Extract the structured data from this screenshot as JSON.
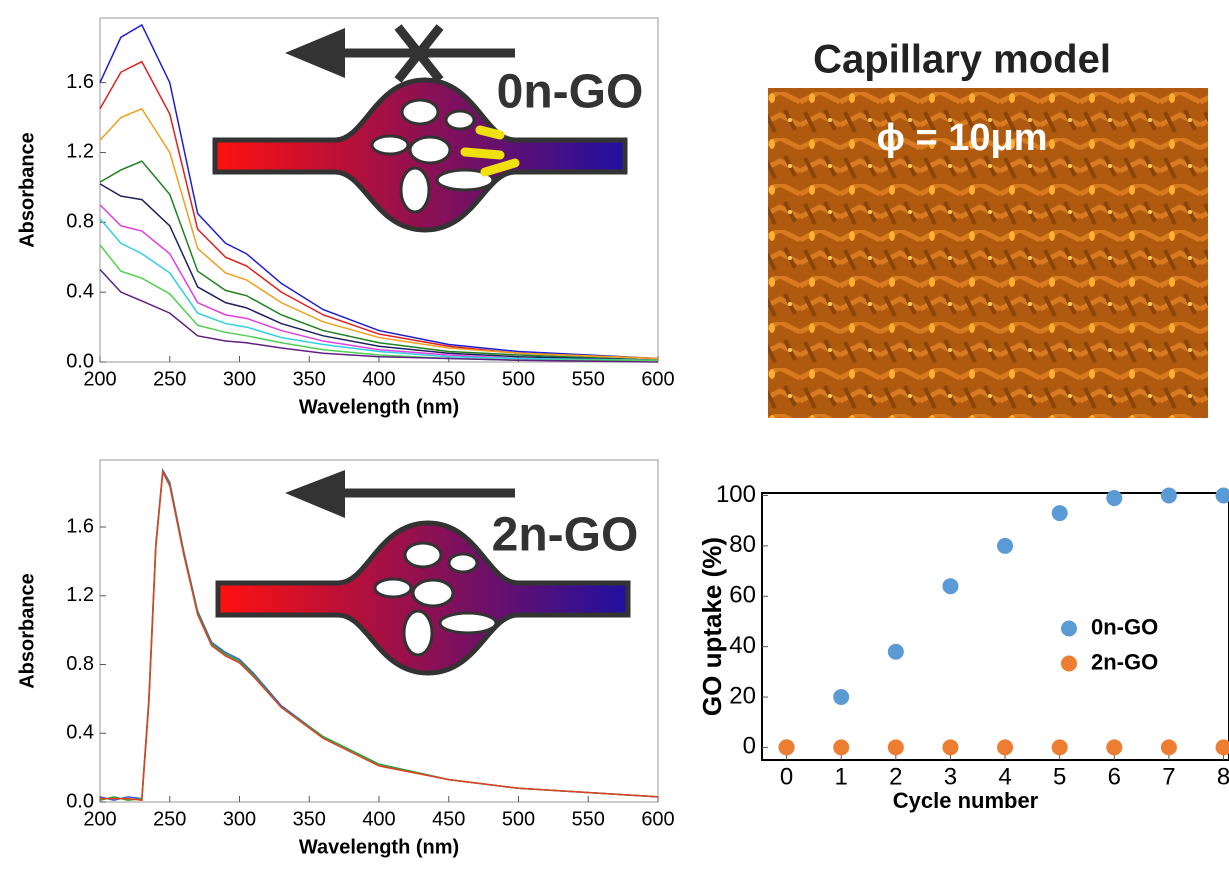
{
  "chart_data": [
    {
      "type": "line",
      "xlabel": "Wavelength (nm)",
      "ylabel": "Absorbance",
      "annotation": "0n-GO",
      "x": [
        200,
        215,
        230,
        250,
        270,
        290,
        305,
        330,
        360,
        400,
        450,
        500,
        600
      ],
      "series": [
        {
          "color": "#1f1fd0",
          "values": [
            1.6,
            1.86,
            1.93,
            1.6,
            0.85,
            0.68,
            0.62,
            0.45,
            0.3,
            0.18,
            0.1,
            0.06,
            0.02
          ]
        },
        {
          "color": "#e02020",
          "values": [
            1.45,
            1.66,
            1.72,
            1.42,
            0.76,
            0.6,
            0.55,
            0.4,
            0.27,
            0.16,
            0.09,
            0.05,
            0.02
          ]
        },
        {
          "color": "#f0a020",
          "values": [
            1.27,
            1.4,
            1.45,
            1.2,
            0.65,
            0.51,
            0.47,
            0.34,
            0.23,
            0.14,
            0.08,
            0.05,
            0.02
          ]
        },
        {
          "color": "#208020",
          "values": [
            1.03,
            1.1,
            1.15,
            0.96,
            0.52,
            0.41,
            0.38,
            0.27,
            0.18,
            0.11,
            0.06,
            0.04,
            0.01
          ]
        },
        {
          "color": "#202060",
          "values": [
            1.02,
            0.95,
            0.93,
            0.78,
            0.43,
            0.34,
            0.31,
            0.22,
            0.15,
            0.09,
            0.05,
            0.03,
            0.01
          ]
        },
        {
          "color": "#e040e0",
          "values": [
            0.9,
            0.78,
            0.75,
            0.62,
            0.34,
            0.27,
            0.25,
            0.18,
            0.12,
            0.07,
            0.04,
            0.02,
            0.01
          ]
        },
        {
          "color": "#30d0e0",
          "values": [
            0.82,
            0.68,
            0.62,
            0.51,
            0.28,
            0.22,
            0.2,
            0.14,
            0.1,
            0.06,
            0.03,
            0.02,
            0.01
          ]
        },
        {
          "color": "#50d050",
          "values": [
            0.67,
            0.52,
            0.48,
            0.39,
            0.21,
            0.17,
            0.15,
            0.11,
            0.07,
            0.04,
            0.02,
            0.01,
            0.01
          ]
        },
        {
          "color": "#602080",
          "values": [
            0.53,
            0.4,
            0.35,
            0.28,
            0.15,
            0.12,
            0.11,
            0.08,
            0.05,
            0.03,
            0.02,
            0.01,
            0.0
          ]
        }
      ],
      "xlim": [
        200,
        600
      ],
      "ylim": [
        0,
        1.97
      ],
      "xticks": [
        200,
        250,
        300,
        350,
        400,
        450,
        500,
        550,
        600
      ],
      "yticks": [
        {
          "value": 0,
          "label": "0.0"
        },
        0.4,
        0.8,
        1.2,
        1.6
      ]
    },
    {
      "type": "line",
      "xlabel": "Wavelength (nm)",
      "ylabel": "Absorbance",
      "annotation": "2n-GO",
      "x": [
        200,
        210,
        220,
        230,
        235,
        240,
        245,
        250,
        260,
        270,
        280,
        290,
        300,
        310,
        330,
        360,
        400,
        450,
        500,
        600
      ],
      "series": [
        {
          "color": "#4060d0",
          "values": [
            0.03,
            0.01,
            0.03,
            0.02,
            0.6,
            1.5,
            1.93,
            1.86,
            1.46,
            1.11,
            0.93,
            0.87,
            0.83,
            0.75,
            0.56,
            0.38,
            0.22,
            0.13,
            0.08,
            0.03
          ]
        },
        {
          "color": "#30a030",
          "values": [
            0.01,
            0.03,
            0.01,
            0.02,
            0.58,
            1.49,
            1.92,
            1.85,
            1.45,
            1.1,
            0.92,
            0.86,
            0.82,
            0.74,
            0.55,
            0.38,
            0.22,
            0.13,
            0.08,
            0.03
          ]
        },
        {
          "color": "#e04020",
          "values": [
            0.02,
            0.02,
            0.02,
            0.01,
            0.57,
            1.48,
            1.92,
            1.84,
            1.44,
            1.09,
            0.91,
            0.85,
            0.81,
            0.73,
            0.55,
            0.37,
            0.21,
            0.13,
            0.08,
            0.03
          ]
        }
      ],
      "xlim": [
        200,
        600
      ],
      "ylim": [
        0,
        1.99
      ],
      "xticks": [
        200,
        250,
        300,
        350,
        400,
        450,
        500,
        550,
        600
      ],
      "yticks": [
        {
          "value": 0,
          "label": "0.0"
        },
        0.4,
        0.8,
        1.2,
        1.6
      ]
    },
    {
      "type": "scatter",
      "xlabel": "Cycle number",
      "ylabel": "GO uptake (%)",
      "legend": "right",
      "x": [
        0,
        1,
        2,
        3,
        4,
        5,
        6,
        7,
        8
      ],
      "series": [
        {
          "name": "0n-GO",
          "color": "#5b9bd5",
          "values": [
            0,
            20,
            38,
            64,
            80,
            93,
            99,
            100,
            100
          ]
        },
        {
          "name": "2n-GO",
          "color": "#ed7d31",
          "values": [
            0,
            0,
            0,
            0,
            0,
            0,
            0,
            0,
            0
          ]
        }
      ],
      "xlim": [
        -0.45,
        8.1
      ],
      "ylim": [
        -5,
        101
      ],
      "xticks": [
        0,
        1,
        2,
        3,
        4,
        5,
        6,
        7,
        8
      ],
      "yticks": [
        0,
        20,
        40,
        60,
        80,
        100
      ]
    }
  ],
  "image": {
    "title": "Capillary model",
    "label": "ϕ = 10μm"
  }
}
